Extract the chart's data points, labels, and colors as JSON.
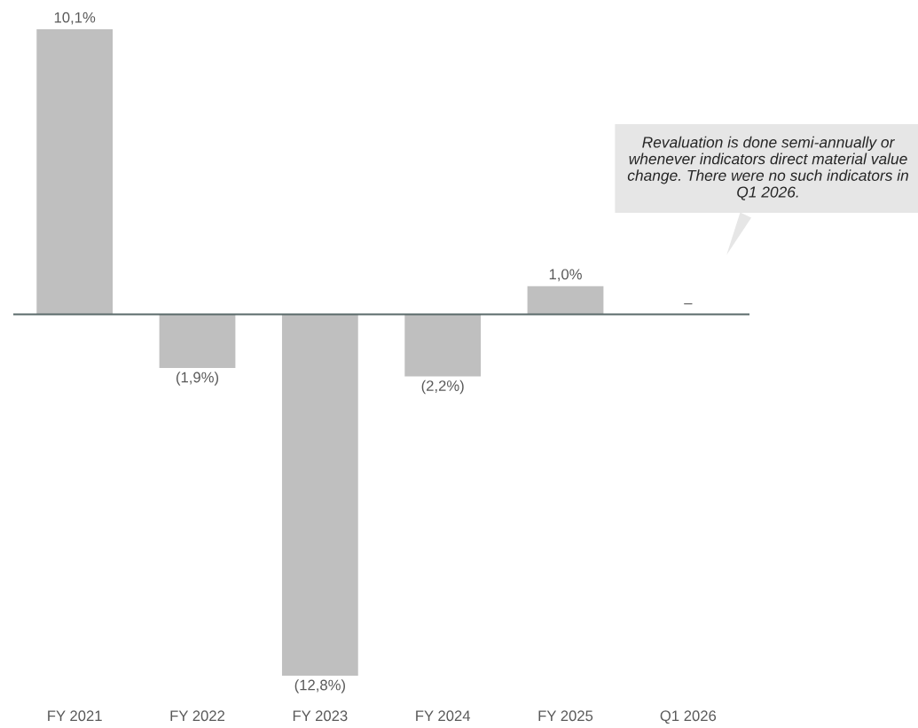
{
  "chart_data": {
    "type": "bar",
    "categories": [
      "FY 2021",
      "FY 2022",
      "FY 2023",
      "FY 2024",
      "FY 2025",
      "Q1 2026"
    ],
    "values": [
      10.1,
      -1.9,
      -12.8,
      -2.2,
      1.0,
      0
    ],
    "value_labels": [
      "10,1%",
      "(1,9%)",
      "(12,8%)",
      "(2,2%)",
      "1,0%",
      "–"
    ],
    "color": "#bfbfbf",
    "annotations": [
      "Revaluation is done semi-annually or whenever indicators direct material value change. There were no such indicators in Q1 2026."
    ],
    "grid": false,
    "legend": false
  }
}
